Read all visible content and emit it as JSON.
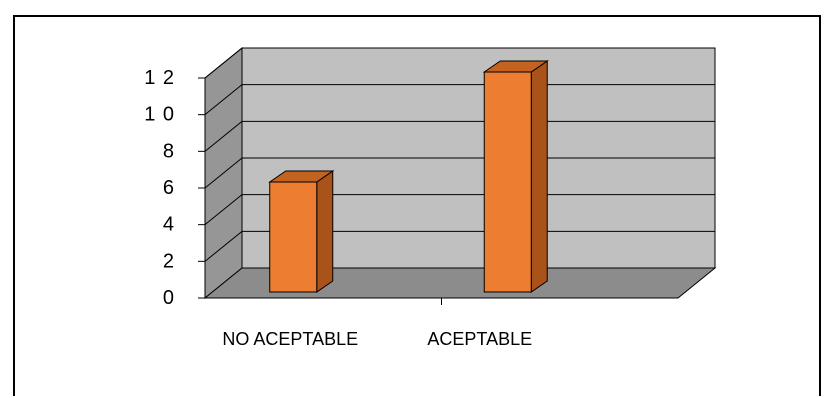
{
  "chart_data": {
    "type": "bar",
    "categories": [
      "NO ACEPTABLE",
      "ACEPTABLE"
    ],
    "values": [
      6,
      12
    ],
    "ylim": [
      0,
      12
    ],
    "yticks": [
      "0",
      "2",
      "4",
      "6",
      "8",
      "1 0",
      "1 2"
    ],
    "grid": true,
    "legend": "none",
    "xlabel": "",
    "ylabel": ""
  },
  "colors": {
    "bar_front": "#ED7D31",
    "bar_side": "#A9521A",
    "bar_top": "#C2631F",
    "wall": "#C0C0C0",
    "side_wall": "#969696",
    "floor": "#8C8C8C",
    "grid": "#000000"
  }
}
